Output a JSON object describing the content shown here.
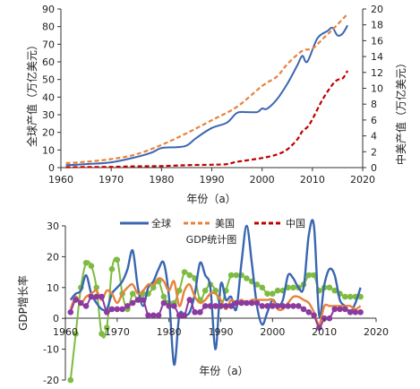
{
  "chart_data": [
    {
      "type": "line",
      "title": "",
      "xlabel": "年份（a）",
      "ylabel": "全球产值（万亿美元）",
      "y2label": "中美产值（万亿美元）",
      "xlim": [
        1960,
        2020
      ],
      "xticks": [
        1960,
        1970,
        1980,
        1990,
        2000,
        2010,
        2020
      ],
      "ylim": [
        0,
        90
      ],
      "yticks": [
        0,
        10,
        20,
        30,
        40,
        50,
        60,
        70,
        80,
        90
      ],
      "y2lim": [
        0,
        20
      ],
      "y2ticks": [
        0,
        2,
        4,
        6,
        8,
        10,
        12,
        14,
        16,
        18,
        20
      ],
      "legend": "none",
      "grid": false,
      "series": [
        {
          "name": "全球",
          "axis": "left",
          "color": "#3A66B0",
          "dash": "solid",
          "x": [
            1961,
            1965,
            1970,
            1975,
            1978,
            1980,
            1983,
            1985,
            1987,
            1990,
            1993,
            1995,
            1997,
            1999,
            2000,
            2001,
            2003,
            2005,
            2007,
            2008,
            2009,
            2011,
            2013,
            2014,
            2015,
            2016,
            2017
          ],
          "y": [
            1.4,
            2.0,
            3.0,
            6.0,
            8.5,
            11.1,
            11.6,
            12.5,
            17.0,
            22.5,
            25.5,
            31.0,
            31.5,
            31.5,
            33.5,
            33.4,
            38.9,
            47.5,
            58.0,
            63.4,
            60.1,
            73.3,
            77.5,
            79.3,
            75.0,
            76.0,
            80.7
          ]
        },
        {
          "name": "美国",
          "axis": "right",
          "color": "#E8823B",
          "dash": "dashed",
          "x": [
            1961,
            1965,
            1970,
            1975,
            1980,
            1985,
            1990,
            1995,
            2000,
            2003,
            2005,
            2008,
            2010,
            2012,
            2014,
            2016,
            2017
          ],
          "y": [
            0.56,
            0.74,
            1.07,
            1.68,
            2.86,
            4.34,
            5.98,
            7.66,
            10.29,
            11.5,
            13.04,
            14.72,
            15.0,
            16.2,
            17.4,
            18.7,
            19.4
          ]
        },
        {
          "name": "中国",
          "axis": "right",
          "color": "#C00000",
          "dash": "dashed",
          "x": [
            1961,
            1965,
            1970,
            1975,
            1980,
            1985,
            1990,
            1993,
            1995,
            2000,
            2003,
            2005,
            2007,
            2008,
            2009,
            2010,
            2012,
            2014,
            2015,
            2016,
            2017
          ],
          "y": [
            0.05,
            0.07,
            0.09,
            0.16,
            0.19,
            0.31,
            0.36,
            0.44,
            0.73,
            1.21,
            1.66,
            2.29,
            3.55,
            4.59,
            5.1,
            6.09,
            8.56,
            10.48,
            11.06,
            11.23,
            12.2
          ]
        }
      ]
    },
    {
      "type": "line",
      "title": "GDP统计图",
      "xlabel": "年份（a）",
      "ylabel": "GDP增长率",
      "xlim": [
        1960,
        2020
      ],
      "xticks": [
        1960,
        1970,
        1980,
        1990,
        2000,
        2010,
        2020
      ],
      "ylim": [
        -20,
        30
      ],
      "yticks": [
        -20,
        -10,
        0,
        10,
        20,
        30
      ],
      "legend": "top",
      "grid": false,
      "series": [
        {
          "name": "全球",
          "color": "#3A66B0",
          "marker": "none",
          "x": [
            1961,
            1962,
            1963,
            1964,
            1965,
            1966,
            1967,
            1968,
            1969,
            1970,
            1971,
            1972,
            1973,
            1974,
            1975,
            1976,
            1977,
            1978,
            1979,
            1980,
            1981,
            1982,
            1983,
            1984,
            1985,
            1986,
            1987,
            1988,
            1989,
            1990,
            1991,
            1992,
            1993,
            1994,
            1995,
            1996,
            1997,
            1998,
            1999,
            2000,
            2001,
            2002,
            2003,
            2004,
            2005,
            2006,
            2007,
            2008,
            2009,
            2010,
            2011,
            2012,
            2013,
            2014,
            2015,
            2016,
            2017
          ],
          "y": [
            6,
            8,
            9,
            14,
            8,
            5,
            3,
            3,
            8,
            10,
            12,
            16,
            22,
            10,
            4,
            10,
            12,
            16,
            18,
            7,
            -15,
            1,
            1,
            2,
            8,
            18,
            14,
            10,
            -10,
            11,
            6,
            7,
            3,
            18,
            30,
            18,
            4,
            -2,
            2,
            6,
            4,
            6,
            14,
            13,
            10,
            10,
            27,
            30,
            1,
            11,
            16,
            14,
            6,
            4,
            2,
            5,
            10
          ]
        },
        {
          "name": "美国",
          "color": "#E8823B",
          "marker": "none",
          "x": [
            1961,
            1962,
            1963,
            1964,
            1965,
            1966,
            1967,
            1968,
            1969,
            1970,
            1971,
            1972,
            1973,
            1974,
            1975,
            1976,
            1977,
            1978,
            1979,
            1980,
            1981,
            1982,
            1983,
            1984,
            1985,
            1986,
            1987,
            1988,
            1989,
            1990,
            1991,
            1992,
            1993,
            1994,
            1995,
            1996,
            1997,
            1998,
            1999,
            2000,
            2001,
            2002,
            2003,
            2004,
            2005,
            2006,
            2007,
            2008,
            2009,
            2010,
            2011,
            2012,
            2013,
            2014,
            2015,
            2016,
            2017
          ],
          "y": [
            3,
            7,
            5,
            7,
            8,
            9,
            6,
            9,
            8,
            5,
            8,
            10,
            11,
            8,
            9,
            11,
            11,
            13,
            12,
            9,
            12,
            4,
            9,
            11,
            7,
            5,
            6,
            8,
            8,
            6,
            3,
            6,
            5,
            6,
            5,
            6,
            6,
            6,
            6,
            6,
            3,
            3,
            5,
            7,
            7,
            6,
            5,
            2,
            -2,
            4,
            4,
            4,
            4,
            4,
            4,
            3,
            4
          ]
        },
        {
          "name": "中国",
          "color": "#8B3A9E",
          "marker": "circle",
          "x": [
            1961,
            1962,
            1963,
            1964,
            1965,
            1966,
            1967,
            1968,
            1969,
            1970,
            1971,
            1972,
            1973,
            1974,
            1975,
            1976,
            1977,
            1978,
            1979,
            1980,
            1981,
            1982,
            1983,
            1984,
            1985,
            1986,
            1987,
            1988,
            1989,
            1990,
            1991,
            1992,
            1993,
            1994,
            1995,
            1996,
            1997,
            1998,
            1999,
            2000,
            2001,
            2002,
            2003,
            2004,
            2005,
            2006,
            2007,
            2008,
            2009,
            2010,
            2011,
            2012,
            2013,
            2014,
            2015,
            2016,
            2017
          ],
          "y": [
            2,
            6,
            5,
            4,
            7,
            7,
            7,
            2,
            3,
            3,
            3,
            4,
            5,
            6,
            6,
            1,
            1,
            1,
            5,
            4,
            4,
            1,
            1,
            6,
            2,
            2,
            4,
            4,
            4,
            4,
            4,
            4,
            5,
            5,
            5,
            5,
            5,
            4,
            4,
            4,
            4,
            4,
            4,
            4,
            4,
            3,
            2,
            1,
            -3,
            0,
            0,
            3,
            3,
            3,
            2,
            2,
            2
          ]
        },
        {
          "name": "",
          "color": "#7DBB42",
          "marker": "circle",
          "x": [
            1961,
            1962,
            1963,
            1964,
            1965,
            1966,
            1967,
            1968,
            1969,
            1970,
            1971,
            1972,
            1973,
            1974,
            1975,
            1976,
            1977,
            1978,
            1979,
            1980,
            1981,
            1982,
            1983,
            1984,
            1985,
            1986,
            1987,
            1988,
            1989,
            1990,
            1991,
            1992,
            1993,
            1994,
            1995,
            1996,
            1997,
            1998,
            1999,
            2000,
            2001,
            2002,
            2003,
            2004,
            2005,
            2006,
            2007,
            2008,
            2009,
            2010,
            2011,
            2012,
            2013,
            2014,
            2015,
            2016,
            2017
          ],
          "y": [
            -20,
            -5,
            10,
            18,
            17,
            10,
            -5,
            -3,
            16,
            19,
            8,
            3,
            8,
            6,
            8,
            8,
            10,
            12,
            7,
            5,
            5,
            9,
            15,
            14,
            13,
            6,
            9,
            11,
            9,
            4,
            9,
            14,
            14,
            14,
            13,
            12,
            11,
            10,
            8,
            8,
            9,
            9,
            10,
            10,
            10,
            11,
            14,
            14,
            9,
            10,
            10,
            9,
            8,
            7,
            7,
            7,
            7
          ]
        }
      ],
      "legend_entries": [
        "全球",
        "美国",
        "中国"
      ]
    }
  ]
}
